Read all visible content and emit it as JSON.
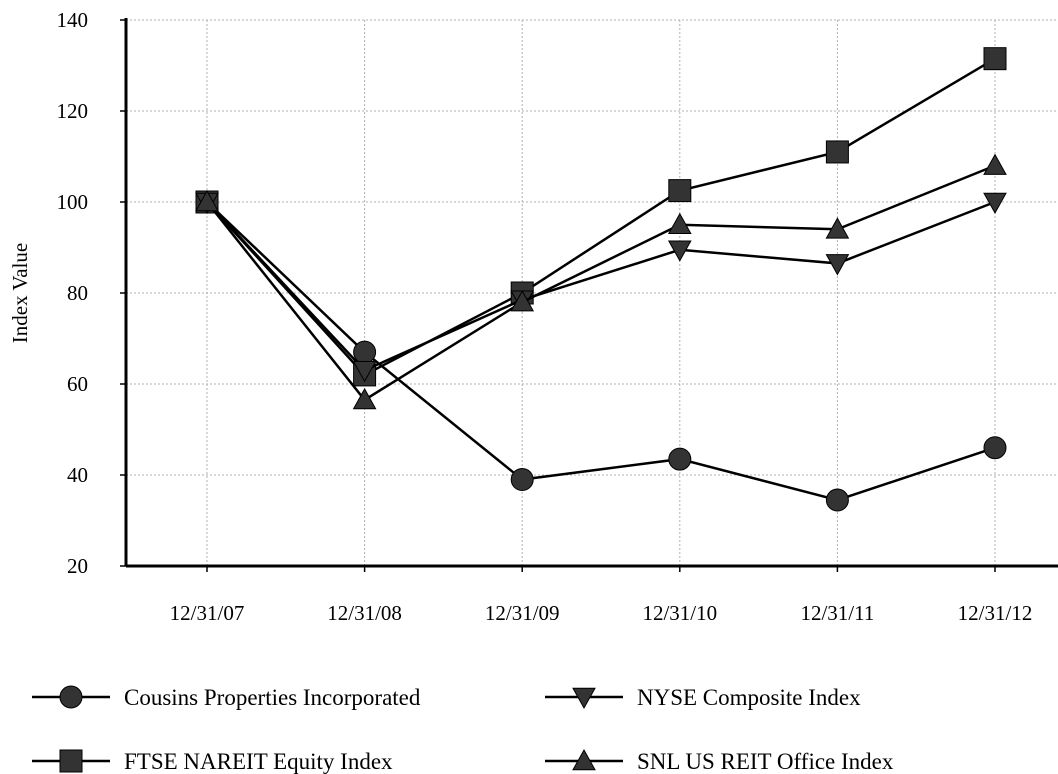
{
  "chart_data": {
    "type": "line",
    "title": "",
    "xlabel": "",
    "ylabel": "Index Value",
    "categories": [
      "12/31/07",
      "12/31/08",
      "12/31/09",
      "12/31/10",
      "12/31/11",
      "12/31/12"
    ],
    "ylim": [
      20,
      140
    ],
    "yticks": [
      20,
      40,
      60,
      80,
      100,
      120,
      140
    ],
    "grid": true,
    "legend_position": "bottom",
    "series": [
      {
        "name": "Cousins Properties Incorporated",
        "marker": "circle",
        "values": [
          100,
          67,
          39,
          43.5,
          34.5,
          46
        ]
      },
      {
        "name": "FTSE NAREIT Equity Index",
        "marker": "square",
        "values": [
          100,
          62,
          80,
          102.5,
          111,
          131.5
        ]
      },
      {
        "name": "NYSE Composite Index",
        "marker": "triangle-down",
        "values": [
          100,
          63,
          78.5,
          89.5,
          86.5,
          100
        ]
      },
      {
        "name": "SNL US REIT Office Index",
        "marker": "triangle-up",
        "values": [
          100,
          56.5,
          78,
          95,
          94,
          108
        ]
      }
    ]
  },
  "colors": {
    "line": "#000000",
    "marker": "#333333",
    "grid": "#b0b0b0"
  }
}
